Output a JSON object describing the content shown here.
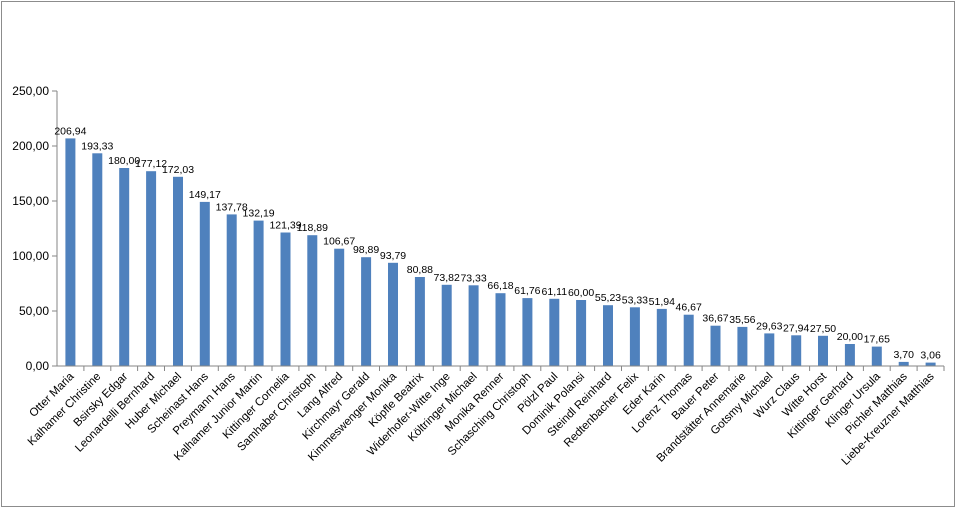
{
  "chart_data": {
    "type": "bar",
    "title": "",
    "xlabel": "",
    "ylabel": "",
    "ylim": [
      0,
      250
    ],
    "yticks": [
      "0,00",
      "50,00",
      "100,00",
      "150,00",
      "200,00",
      "250,00"
    ],
    "grid": false,
    "legend": "none",
    "bar_color": "#4f81bd",
    "categories": [
      "Otter Maria",
      "Kalhamer Christine",
      "Bsirsky Edgar",
      "Leonardelli Bernhard",
      "Huber Michael",
      "Scheinast Hans",
      "Preymann Hans",
      "Kalhamer Junior Martin",
      "Kittinger Cornelia",
      "Samhaber Christoph",
      "Lang Alfred",
      "Kirchmayr Gerald",
      "Kimmeswenger Monika",
      "Köpfle Beatrix",
      "Widerhofer-Witte Inge",
      "Költringer Michael",
      "Monika Renner",
      "Schasching Christoph",
      "Pölzl Paul",
      "Dominik Polansi",
      "Steindl Reinhard",
      "Redtenbacher Felix",
      "Eder Karin",
      "Lorenz Thomas",
      "Bauer Peter",
      "Brandstätter Annemarie",
      "Gotsmy Michael",
      "Wurz Claus",
      "Witte Horst",
      "Kittinger Gerhard",
      "Klinger Ursula",
      "Pichler Matthias",
      "Liebe-Kreuzner Matthias"
    ],
    "values": [
      206.94,
      193.33,
      180.0,
      177.12,
      172.03,
      149.17,
      137.78,
      132.19,
      121.39,
      118.89,
      106.67,
      98.89,
      93.79,
      80.88,
      73.82,
      73.33,
      66.18,
      61.76,
      61.11,
      60.0,
      55.23,
      53.33,
      51.94,
      46.67,
      36.67,
      35.56,
      29.63,
      27.94,
      27.5,
      20.0,
      17.65,
      3.7,
      3.06
    ],
    "value_labels": [
      "206,94",
      "193,33",
      "180,00",
      "177,12",
      "172,03",
      "149,17",
      "137,78",
      "132,19",
      "121,39",
      "118,89",
      "106,67",
      "98,89",
      "93,79",
      "80,88",
      "73,82",
      "73,33",
      "66,18",
      "61,76",
      "61,11",
      "60,00",
      "55,23",
      "53,33",
      "51,94",
      "46,67",
      "36,67",
      "35,56",
      "29,63",
      "27,94",
      "27,50",
      "20,00",
      "17,65",
      "3,70",
      "3,06"
    ]
  }
}
